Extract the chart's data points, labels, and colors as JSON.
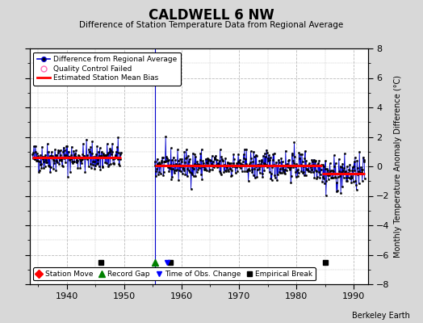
{
  "title": "CALDWELL 6 NW",
  "subtitle": "Difference of Station Temperature Data from Regional Average",
  "ylabel_right": "Monthly Temperature Anomaly Difference (°C)",
  "ylim": [
    -8,
    8
  ],
  "xlim": [
    1933.5,
    1992.5
  ],
  "xticks": [
    1940,
    1950,
    1960,
    1970,
    1980,
    1990
  ],
  "yticks": [
    -8,
    -6,
    -4,
    -2,
    0,
    2,
    4,
    6,
    8
  ],
  "bg_color": "#d8d8d8",
  "plot_bg_color": "#ffffff",
  "grid_color": "#bbbbbb",
  "data_color": "#0000cc",
  "bias_color": "#ff0000",
  "qc_color": "#ff69b4",
  "watermark": "Berkeley Earth",
  "segment1_start": 1934.0,
  "segment1_end": 1949.5,
  "segment1_bias": 0.6,
  "segment2_start": 1955.3,
  "segment2_end": 1984.5,
  "segment2_bias": 0.08,
  "segment3_start": 1984.5,
  "segment3_end": 1992.0,
  "segment3_bias": -0.5,
  "gap_x": 1955.3,
  "time_obs_change_x": 1957.5,
  "empirical_breaks": [
    1946.0,
    1958.0,
    1985.0
  ],
  "record_gap_x": 1955.3,
  "marker_y": -6.5,
  "seed": 42
}
